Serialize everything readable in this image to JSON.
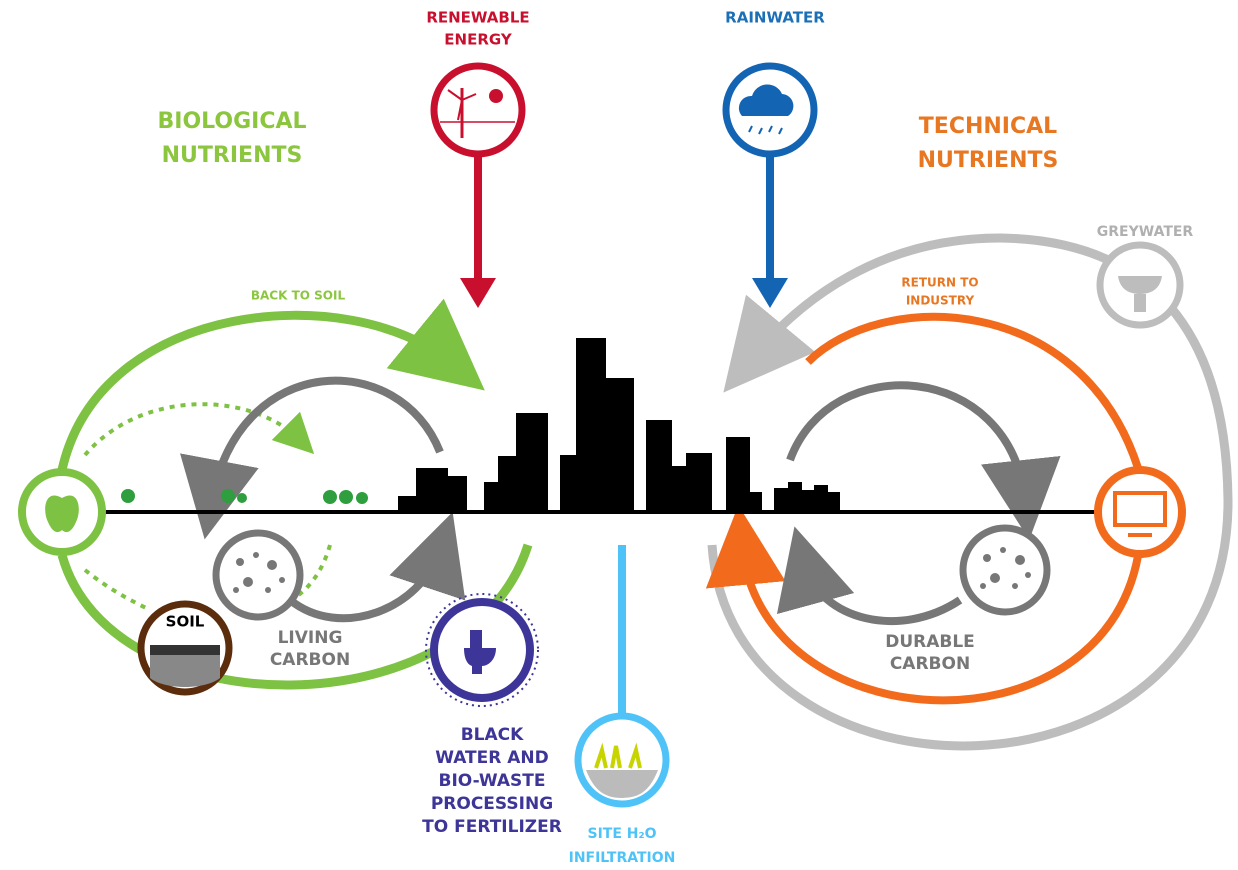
{
  "energy": {
    "label": [
      "RENEWABLE",
      "ENERGY"
    ]
  },
  "rainwater": {
    "label": [
      "RAINWATER"
    ]
  },
  "biological": {
    "label": [
      "BIOLOGICAL",
      "NUTRIENTS"
    ]
  },
  "technical": {
    "label": [
      "TECHNICAL",
      "NUTRIENTS"
    ]
  },
  "greywater": {
    "label": [
      "GREYWATER"
    ]
  },
  "back_to_soil": {
    "label": [
      "BACK TO SOIL"
    ]
  },
  "return_to_industry": {
    "label": [
      "RETURN TO",
      "INDUSTRY"
    ]
  },
  "soil": {
    "label": [
      "SOIL"
    ]
  },
  "living_carbon": {
    "label": [
      "LIVING",
      "CARBON"
    ]
  },
  "durable_carbon": {
    "label": [
      "DURABLE",
      "CARBON"
    ]
  },
  "black_water": {
    "label": [
      "BLACK",
      "WATER AND",
      "BIO-WASTE",
      "PROCESSING",
      "TO FERTILIZER"
    ]
  },
  "infiltration": {
    "label": [
      "SITE H₂O",
      "INFILTRATION"
    ]
  }
}
